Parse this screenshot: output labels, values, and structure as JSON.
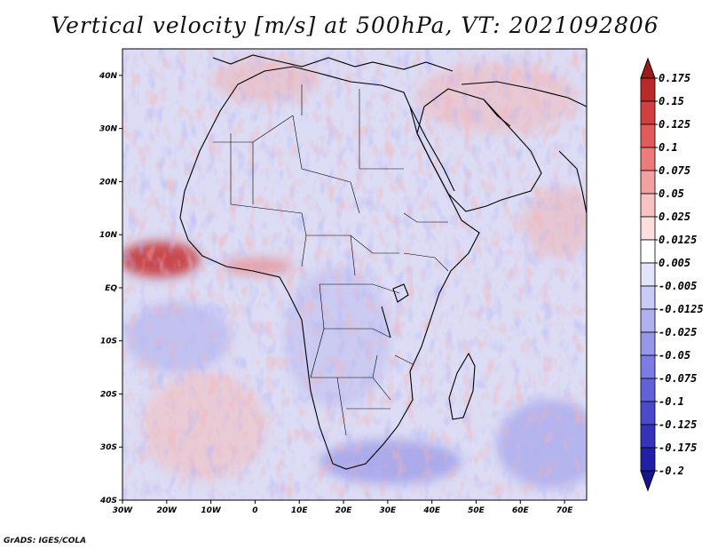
{
  "title": "Vertical velocity [m/s] at 500hPa, VT: 2021092806",
  "credit": "GrADS: IGES/COLA",
  "map": {
    "lon_range": [
      -30,
      75
    ],
    "lat_range": [
      -40,
      45
    ],
    "lon_ticks": [
      "30W",
      "20W",
      "10W",
      "0",
      "10E",
      "20E",
      "30E",
      "40E",
      "50E",
      "60E",
      "70E"
    ],
    "lat_ticks": [
      "40N",
      "30N",
      "20N",
      "10N",
      "EQ",
      "10S",
      "20S",
      "30S",
      "40S"
    ]
  },
  "colorbar": {
    "labels": [
      "0.175",
      "0.15",
      "0.125",
      "0.1",
      "0.075",
      "0.05",
      "0.025",
      "0.0125",
      "0.005",
      "-0.005",
      "-0.0125",
      "-0.025",
      "-0.05",
      "-0.075",
      "-0.1",
      "-0.125",
      "-0.175",
      "-0.2"
    ],
    "colors": [
      "#a01a1a",
      "#bb2a2a",
      "#d23f3f",
      "#e25a5a",
      "#ec7c7c",
      "#f3a0a0",
      "#f8c2c2",
      "#fbdede",
      "#ffffff",
      "#e4e4fb",
      "#cacaf6",
      "#b0b0f0",
      "#9696ea",
      "#7c7ce2",
      "#6262d8",
      "#4a4acc",
      "#3434bb",
      "#2020a6",
      "#14148f"
    ]
  }
}
